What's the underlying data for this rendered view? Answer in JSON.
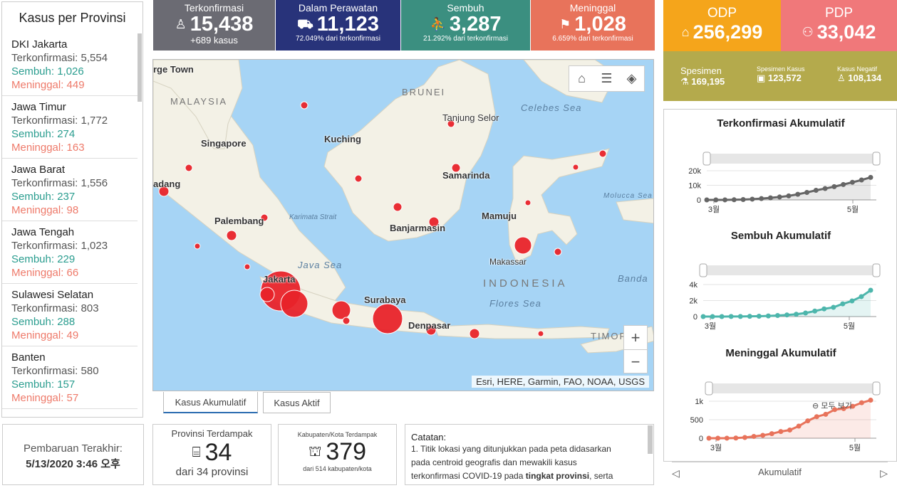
{
  "provinces_panel": {
    "title": "Kasus per Provinsi",
    "items": [
      {
        "name": "DKI Jakarta",
        "confirmed": "Terkonfirmasi: 5,554",
        "recovered": "Sembuh: 1,026",
        "deaths": "Meninggal: 449"
      },
      {
        "name": "Jawa Timur",
        "confirmed": "Terkonfirmasi: 1,772",
        "recovered": "Sembuh: 274",
        "deaths": "Meninggal: 163"
      },
      {
        "name": "Jawa Barat",
        "confirmed": "Terkonfirmasi: 1,556",
        "recovered": "Sembuh: 237",
        "deaths": "Meninggal: 98"
      },
      {
        "name": "Jawa Tengah",
        "confirmed": "Terkonfirmasi: 1,023",
        "recovered": "Sembuh: 229",
        "deaths": "Meninggal: 66"
      },
      {
        "name": "Sulawesi Selatan",
        "confirmed": "Terkonfirmasi: 803",
        "recovered": "Sembuh: 288",
        "deaths": "Meninggal: 49"
      },
      {
        "name": "Banten",
        "confirmed": "Terkonfirmasi: 580",
        "recovered": "Sembuh: 157",
        "deaths": "Meninggal: 57"
      }
    ]
  },
  "stats": {
    "confirmed": {
      "label": "Terkonfirmasi",
      "value": "15,438",
      "sub": "+689 kasus",
      "icon": "person-icon"
    },
    "in_care": {
      "label": "Dalam Perawatan",
      "value": "11,123",
      "sub": "72.049% dari terkonfirmasi",
      "icon": "bed-icon"
    },
    "recovered": {
      "label": "Sembuh",
      "value": "3,287",
      "sub": "21.292% dari terkonfirmasi",
      "icon": "walking-person-icon"
    },
    "deaths": {
      "label": "Meninggal",
      "value": "1,028",
      "sub": "6.659% dari terkonfirmasi",
      "icon": "falling-person-icon"
    },
    "odp": {
      "label": "ODP",
      "value": "256,299",
      "icon": "house-icon"
    },
    "pdp": {
      "label": "PDP",
      "value": "33,042",
      "icon": "people-icon"
    },
    "specimen": {
      "label": "Spesimen",
      "value": "169,195"
    },
    "specimen_cases": {
      "label": "Spesimen Kasus",
      "value": "123,572"
    },
    "negative_cases": {
      "label": "Kasus Negatif",
      "value": "108,134"
    }
  },
  "colors": {
    "confirmed": "#6b6b73",
    "in_care": "#28337a",
    "recovered": "#3b8f80",
    "deaths": "#e8735b",
    "odp": "#f5a51b",
    "pdp": "#f0787a",
    "specimen": "#b4aa4c",
    "map_water": "#a6d4f5",
    "map_land": "#f3f1e6",
    "case_dot": "#e8232a"
  },
  "map": {
    "labels": {
      "george_town": "rge Town",
      "malaysia": "MALAYSIA",
      "brunei": "BRUNEI",
      "tanjung_selor": "Tanjung Selor",
      "celebes_sea": "Celebes Sea",
      "kuching": "Kuching",
      "singapore": "Singapore",
      "samarinda": "Samarinda",
      "padang": "adang",
      "molucca_sea": "Molucca Sea",
      "palembang": "Palembang",
      "karimata_strait": "Karimata Strait",
      "mamuju": "Mamuju",
      "banjarmasin": "Banjarmasin",
      "makassar": "Makassar",
      "java_sea": "Java Sea",
      "indonesia": "INDONESIA",
      "banda": "Banda",
      "jakarta": "Jakarta",
      "surabaya": "Surabaya",
      "flores_sea": "Flores Sea",
      "denpasar": "Denpasar",
      "timor": "TIMOR"
    },
    "zoom_in": "+",
    "zoom_out": "−",
    "attribution": "Esri, HERE, Garmin, FAO, NOAA, USGS"
  },
  "tabs": {
    "cumulative": "Kasus Akumulatif",
    "active": "Kasus Aktif"
  },
  "update": {
    "label": "Pembaruan Terakhir:",
    "value": "5/13/2020 3:46 오후"
  },
  "affected_provinces": {
    "label": "Provinsi Terdampak",
    "value": "34",
    "sub": "dari 34 provinsi",
    "icon": "building-icon"
  },
  "affected_regencies": {
    "label": "Kabupaten/Kota Terdampak",
    "value": "379",
    "sub": "dari 514 kabupaten/kota",
    "icon": "capitol-icon"
  },
  "notes": {
    "title": "Catatan:",
    "body_1": "1. Titik lokasi yang ditunjukkan pada peta didasarkan",
    "body_2": "pada centroid geografis dan mewakili kasus",
    "body_3_pre": "terkonfirmasi COVID-19 pada ",
    "body_3_bold": "tingkat provinsi",
    "body_3_post": ", serta"
  },
  "charts_footer": {
    "label": "Akumulatif",
    "prev": "◁",
    "next": "▷"
  },
  "zoom_tip": "모두 보기",
  "chart_data": [
    {
      "type": "line",
      "title": "Terkonfirmasi Akumulatif",
      "x_ticks": [
        "3월",
        "5월"
      ],
      "y_ticks": [
        "20k",
        "10k",
        "0"
      ],
      "ylim": [
        0,
        20000
      ],
      "color": "#666666",
      "x": [
        "3/2",
        "3/6",
        "3/10",
        "3/14",
        "3/18",
        "3/22",
        "3/26",
        "3/30",
        "4/3",
        "4/7",
        "4/11",
        "4/15",
        "4/19",
        "4/23",
        "4/27",
        "5/1",
        "5/5",
        "5/9",
        "5/13"
      ],
      "values": [
        2,
        4,
        27,
        96,
        227,
        514,
        893,
        1414,
        1986,
        2738,
        3842,
        5136,
        6575,
        7775,
        9096,
        10551,
        12071,
        13645,
        15438
      ]
    },
    {
      "type": "line",
      "title": "Sembuh Akumulatif",
      "x_ticks": [
        "3월",
        "5월"
      ],
      "y_ticks": [
        "4k",
        "2k",
        "0"
      ],
      "ylim": [
        0,
        4000
      ],
      "color": "#4db6ac",
      "x": [
        "3/2",
        "3/6",
        "3/10",
        "3/14",
        "3/18",
        "3/22",
        "3/26",
        "3/30",
        "4/3",
        "4/7",
        "4/11",
        "4/15",
        "4/19",
        "4/23",
        "4/27",
        "5/1",
        "5/5",
        "5/9",
        "5/13"
      ],
      "values": [
        0,
        0,
        2,
        8,
        11,
        29,
        46,
        75,
        134,
        204,
        286,
        446,
        686,
        960,
        1151,
        1591,
        1954,
        2494,
        3287
      ]
    },
    {
      "type": "line",
      "title": "Meninggal Akumulatif",
      "x_ticks": [
        "3월",
        "5월"
      ],
      "y_ticks": [
        "1k",
        "500",
        "0"
      ],
      "ylim": [
        0,
        1000
      ],
      "color": "#e8735b",
      "x": [
        "3/2",
        "3/6",
        "3/10",
        "3/14",
        "3/18",
        "3/22",
        "3/26",
        "3/30",
        "4/3",
        "4/7",
        "4/11",
        "4/15",
        "4/19",
        "4/23",
        "4/27",
        "5/1",
        "5/5",
        "5/9",
        "5/13"
      ],
      "values": [
        0,
        0,
        1,
        5,
        19,
        48,
        78,
        122,
        181,
        221,
        327,
        469,
        582,
        647,
        773,
        800,
        864,
        959,
        1028
      ]
    }
  ]
}
